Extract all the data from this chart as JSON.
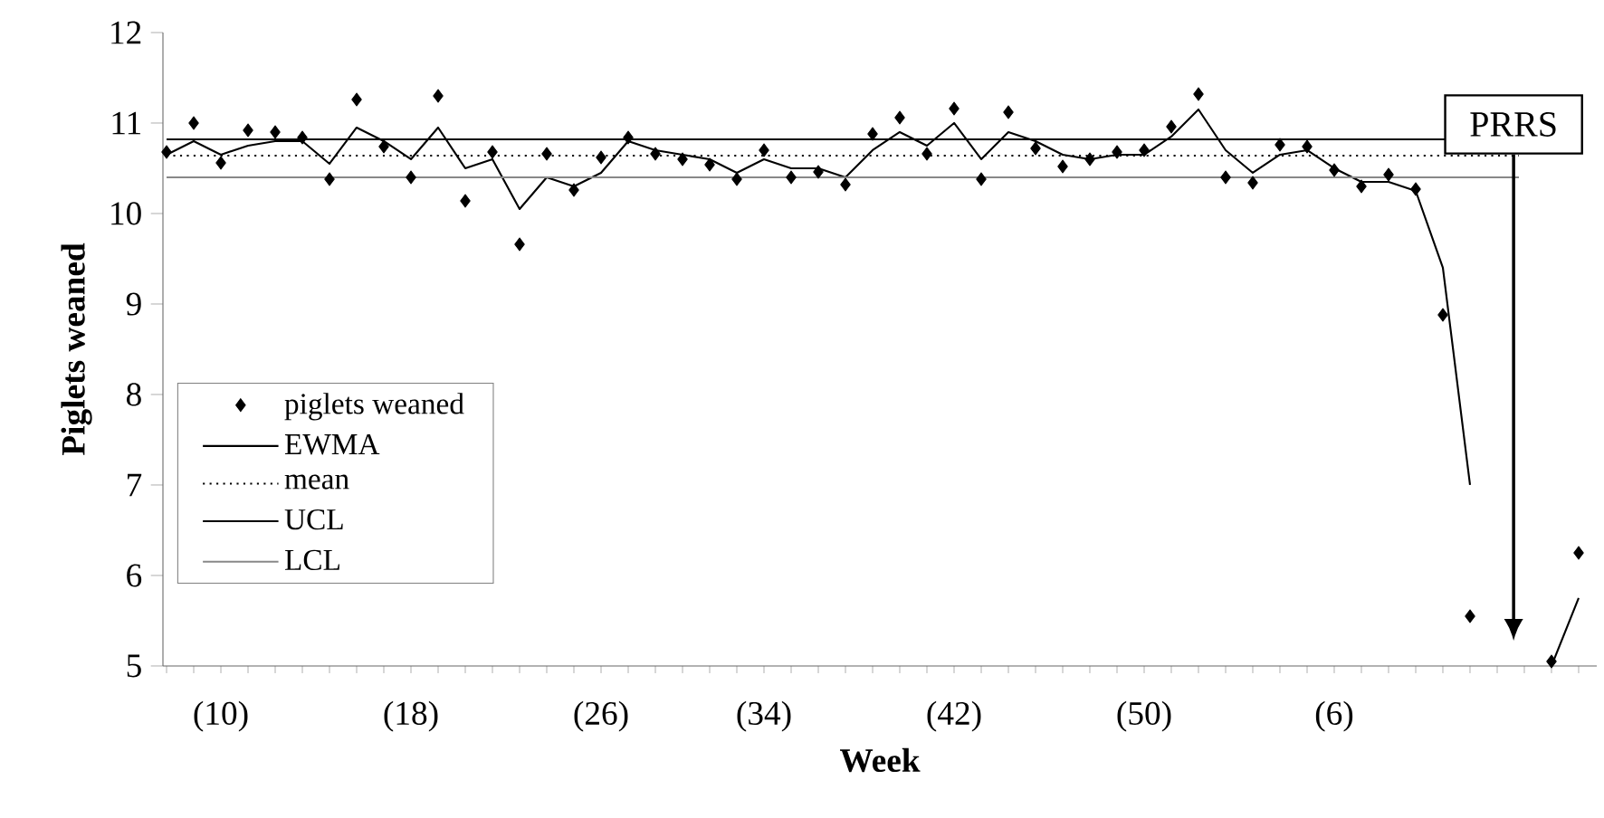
{
  "chart_data": {
    "type": "line",
    "xlabel": "Week",
    "ylabel": "Piglets weaned",
    "categories": [
      null,
      null,
      "(10)",
      null,
      null,
      null,
      null,
      null,
      null,
      "(18)",
      null,
      null,
      null,
      null,
      null,
      null,
      "(26)",
      null,
      null,
      null,
      null,
      null,
      "(34)",
      null,
      null,
      null,
      null,
      null,
      null,
      "(42)",
      null,
      null,
      null,
      null,
      null,
      null,
      "(50)",
      null,
      null,
      null,
      null,
      null,
      null,
      "(6)",
      null,
      null,
      null,
      null,
      null,
      null,
      null,
      null,
      null
    ],
    "series": [
      {
        "name": "piglets weaned",
        "type": "scatter",
        "marker": "diamond",
        "color": "#000000",
        "values": [
          10.68,
          11.0,
          10.56,
          10.92,
          10.9,
          10.84,
          10.38,
          11.26,
          10.74,
          10.4,
          11.3,
          10.14,
          10.68,
          9.66,
          10.66,
          10.26,
          10.62,
          10.84,
          10.66,
          10.6,
          10.54,
          10.38,
          10.7,
          10.4,
          10.46,
          10.32,
          10.88,
          11.06,
          10.66,
          11.16,
          10.38,
          11.12,
          10.72,
          10.52,
          10.6,
          10.68,
          10.7,
          10.96,
          11.32,
          10.4,
          10.34,
          10.76,
          10.74,
          10.48,
          10.3,
          10.43,
          10.27,
          8.88,
          5.55,
          null,
          null,
          5.05,
          6.25
        ]
      },
      {
        "name": "EWMA",
        "line_style": "solid",
        "color": "#000000",
        "values": [
          10.65,
          10.8,
          10.65,
          10.75,
          10.8,
          10.8,
          10.55,
          10.95,
          10.8,
          10.6,
          10.95,
          10.5,
          10.6,
          10.05,
          10.4,
          10.3,
          10.45,
          10.8,
          10.7,
          10.65,
          10.6,
          10.45,
          10.6,
          10.5,
          10.5,
          10.4,
          10.7,
          10.9,
          10.75,
          11.0,
          10.6,
          10.9,
          10.8,
          10.65,
          10.6,
          10.65,
          10.65,
          10.85,
          11.15,
          10.7,
          10.45,
          10.65,
          10.7,
          10.5,
          10.35,
          10.35,
          10.25,
          9.4,
          7.0,
          null,
          null,
          5.0,
          5.75
        ]
      }
    ],
    "ref_lines": [
      {
        "axis": "y",
        "value": 10.64,
        "label": "mean",
        "color": "#000000",
        "line_style": "dotted"
      },
      {
        "axis": "y",
        "value": 10.82,
        "label": "UCL",
        "color": "#000000",
        "line_style": "solid"
      },
      {
        "axis": "y",
        "value": 10.4,
        "label": "LCL",
        "color": "#888888",
        "line_style": "solid"
      }
    ],
    "annotations": [
      "PRRS"
    ],
    "ylim": [
      5,
      12
    ],
    "yticks": [
      5,
      6,
      7,
      8,
      9,
      10,
      11,
      12
    ],
    "grid": false,
    "legend": "bottom left"
  }
}
